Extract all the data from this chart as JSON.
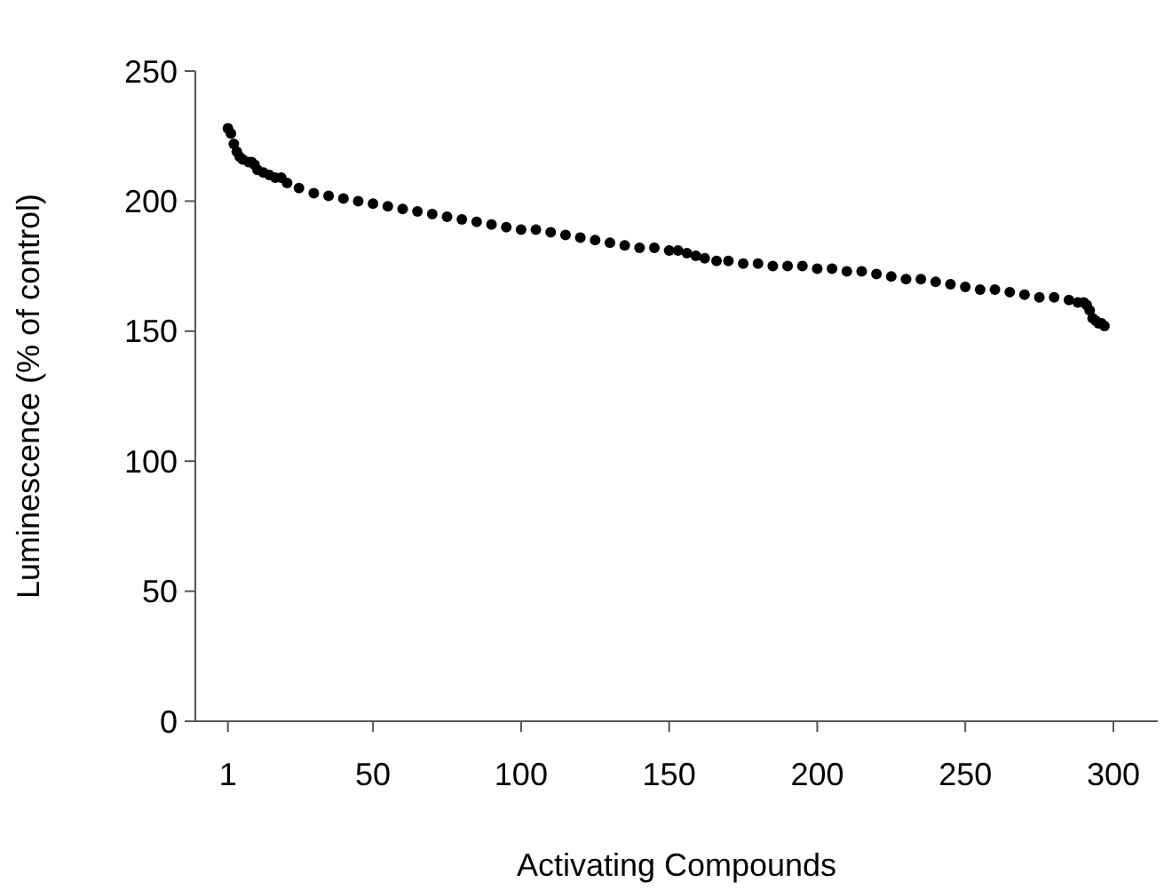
{
  "chart_data": {
    "type": "scatter",
    "xlabel": "Activating Compounds",
    "ylabel": "Luminescence (% of control)",
    "x": [
      1,
      2,
      3,
      4,
      5,
      6,
      8,
      9,
      10,
      11,
      13,
      15,
      17,
      19,
      21,
      25,
      30,
      35,
      40,
      45,
      50,
      55,
      60,
      65,
      70,
      75,
      80,
      85,
      90,
      95,
      100,
      105,
      110,
      115,
      120,
      125,
      130,
      135,
      140,
      145,
      150,
      153,
      156,
      159,
      162,
      166,
      170,
      175,
      180,
      185,
      190,
      195,
      200,
      205,
      210,
      215,
      220,
      225,
      230,
      235,
      240,
      245,
      250,
      255,
      260,
      265,
      270,
      275,
      280,
      285,
      288,
      290,
      291,
      292,
      293,
      294,
      295,
      296,
      297
    ],
    "values": [
      228,
      226,
      222,
      219,
      217,
      216,
      215,
      215,
      214,
      212,
      211,
      210,
      209,
      209,
      207,
      205,
      203,
      202,
      201,
      200,
      199,
      198,
      197,
      196,
      195,
      194,
      193,
      192,
      191,
      190,
      189,
      189,
      188,
      187,
      186,
      185,
      184,
      183,
      182,
      182,
      181,
      181,
      180,
      179,
      178,
      177,
      177,
      176,
      176,
      175,
      175,
      175,
      174,
      174,
      173,
      173,
      172,
      171,
      170,
      170,
      169,
      168,
      167,
      166,
      166,
      165,
      164,
      163,
      163,
      162,
      161,
      161,
      160,
      158,
      155,
      154,
      153,
      153,
      152
    ],
    "color": "#000000",
    "marker": "circle",
    "xlim": [
      -10,
      315
    ],
    "ylim": [
      0,
      250
    ],
    "xticks": [
      1,
      50,
      100,
      150,
      200,
      250,
      300
    ],
    "yticks": [
      0,
      50,
      100,
      150,
      200,
      250
    ],
    "grid": false
  }
}
